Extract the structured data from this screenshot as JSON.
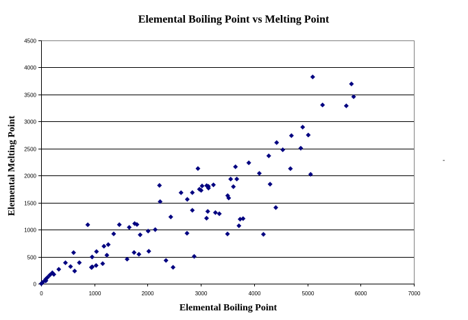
{
  "chart_data": {
    "type": "scatter",
    "title": "Elemental Boiling Point vs Melting Point",
    "xlabel": "Elemental Boiling Point",
    "ylabel": "Elemental Melting Point",
    "xlim": [
      0,
      7000
    ],
    "ylim": [
      0,
      4500
    ],
    "xticks": [
      0,
      1000,
      2000,
      3000,
      4000,
      5000,
      6000,
      7000
    ],
    "yticks": [
      0,
      500,
      1000,
      1500,
      2000,
      2500,
      3000,
      3500,
      4000,
      4500
    ],
    "grid": "horizontal",
    "legend": "none",
    "marker": "diamond",
    "marker_color": "#000080",
    "side_mark": "-",
    "points": [
      [
        20,
        14
      ],
      [
        4,
        1
      ],
      [
        1615,
        454
      ],
      [
        2745,
        1560
      ],
      [
        4275,
        2365
      ],
      [
        5100,
        3825
      ],
      [
        77,
        63
      ],
      [
        90,
        55
      ],
      [
        85,
        53
      ],
      [
        27,
        25
      ],
      [
        1156,
        371
      ],
      [
        1363,
        922
      ],
      [
        2740,
        933
      ],
      [
        2628,
        1683
      ],
      [
        553,
        317
      ],
      [
        718,
        389
      ],
      [
        239,
        172
      ],
      [
        87,
        84
      ],
      [
        1033,
        337
      ],
      [
        1757,
        1112
      ],
      [
        3109,
        1814
      ],
      [
        3560,
        1935
      ],
      [
        3650,
        2163
      ],
      [
        2945,
        2130
      ],
      [
        2235,
        1518
      ],
      [
        3023,
        1808
      ],
      [
        3143,
        1768
      ],
      [
        3005,
        1726
      ],
      [
        2840,
        1358
      ],
      [
        1180,
        693
      ],
      [
        2478,
        303
      ],
      [
        3107,
        1211
      ],
      [
        876,
        1090
      ],
      [
        958,
        494
      ],
      [
        332,
        266
      ],
      [
        120,
        116
      ],
      [
        961,
        312
      ],
      [
        1655,
        1042
      ],
      [
        3611,
        1795
      ],
      [
        4682,
        2128
      ],
      [
        5017,
        2750
      ],
      [
        4912,
        2896
      ],
      [
        4538,
        2477
      ],
      [
        4423,
        2610
      ],
      [
        3900,
        2236
      ],
      [
        3236,
        1828
      ],
      [
        2435,
        1235
      ],
      [
        1040,
        594
      ],
      [
        2345,
        430
      ],
      [
        2875,
        505
      ],
      [
        1860,
        904
      ],
      [
        1261,
        723
      ],
      [
        457,
        387
      ],
      [
        165,
        161
      ],
      [
        944,
        302
      ],
      [
        2143,
        1000
      ],
      [
        3737,
        1193
      ],
      [
        3715,
        1071
      ],
      [
        3793,
        1204
      ],
      [
        3347,
        1294
      ],
      [
        3273,
        1315
      ],
      [
        1800,
        1095
      ],
      [
        3523,
        1585
      ],
      [
        3503,
        1629
      ],
      [
        2840,
        1685
      ],
      [
        2973,
        1747
      ],
      [
        3141,
        1802
      ],
      [
        2223,
        1818
      ],
      [
        1469,
        1092
      ],
      [
        3675,
        1936
      ],
      [
        4876,
        2506
      ],
      [
        5731,
        3290
      ],
      [
        5828,
        3695
      ],
      [
        5869,
        3459
      ],
      [
        5285,
        3306
      ],
      [
        4701,
        2739
      ],
      [
        4098,
        2041
      ],
      [
        3129,
        1337
      ],
      [
        630,
        234
      ],
      [
        1746,
        577
      ],
      [
        2022,
        600
      ],
      [
        1837,
        544
      ],
      [
        1235,
        527
      ],
      [
        610,
        575
      ],
      [
        211,
        202
      ],
      [
        950,
        300
      ],
      [
        2010,
        973
      ],
      [
        3500,
        920
      ],
      [
        5061,
        2023
      ],
      [
        4300,
        1841
      ],
      [
        4407,
        1408
      ],
      [
        4175,
        913
      ]
    ]
  }
}
